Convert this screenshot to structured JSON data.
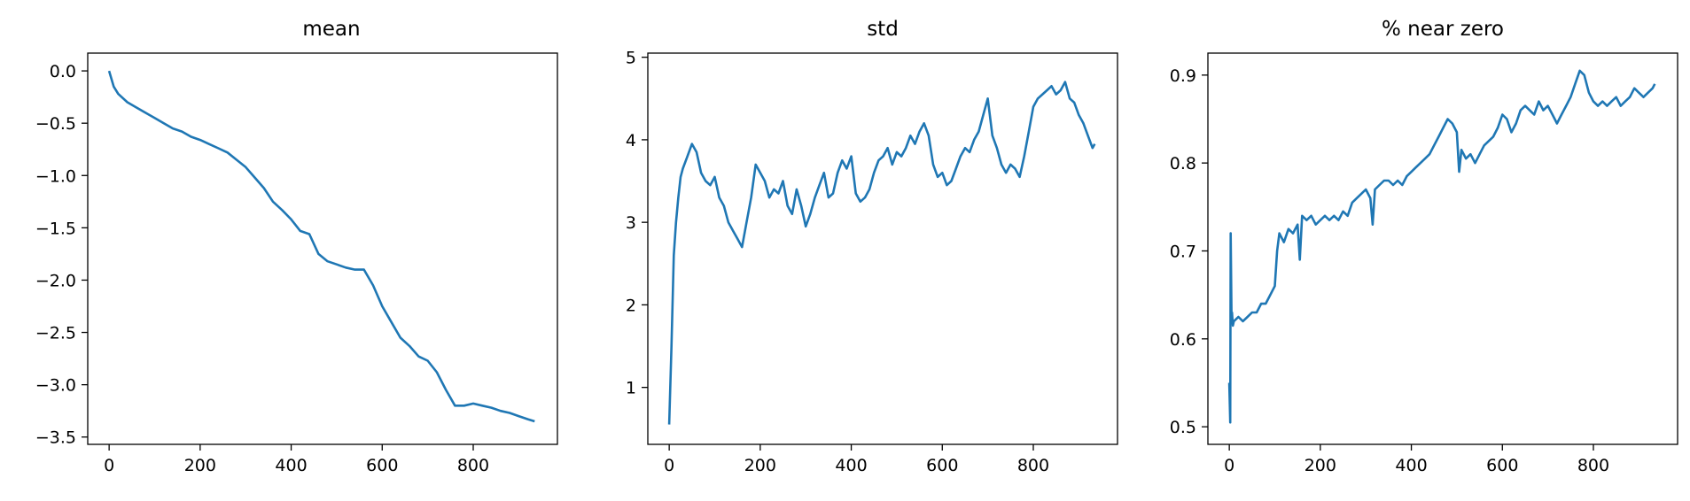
{
  "chart_data": [
    {
      "type": "line",
      "title": "mean",
      "xlabel": "",
      "ylabel": "",
      "xlim": [
        -47,
        985
      ],
      "ylim": [
        -3.57,
        0.17
      ],
      "xticks": [
        0,
        200,
        400,
        600,
        800
      ],
      "yticks": [
        0.0,
        -0.5,
        -1.0,
        -1.5,
        -2.0,
        -2.5,
        -3.0,
        -3.5
      ],
      "ytick_labels": [
        "0.0",
        "−0.5",
        "−1.0",
        "−1.5",
        "−2.0",
        "−2.5",
        "−3.0",
        "−3.5"
      ],
      "grid": false,
      "color": "#1f77b4",
      "series": [
        {
          "x": [
            0,
            10,
            20,
            40,
            60,
            80,
            100,
            120,
            140,
            160,
            180,
            200,
            220,
            240,
            260,
            280,
            300,
            320,
            340,
            360,
            380,
            400,
            420,
            440,
            460,
            480,
            500,
            520,
            540,
            560,
            580,
            600,
            620,
            640,
            660,
            680,
            700,
            720,
            740,
            760,
            780,
            800,
            820,
            840,
            860,
            880,
            900,
            920,
            935
          ],
          "y": [
            0.0,
            -0.15,
            -0.22,
            -0.3,
            -0.35,
            -0.4,
            -0.45,
            -0.5,
            -0.55,
            -0.58,
            -0.63,
            -0.66,
            -0.7,
            -0.74,
            -0.78,
            -0.85,
            -0.92,
            -1.02,
            -1.12,
            -1.25,
            -1.33,
            -1.42,
            -1.53,
            -1.56,
            -1.75,
            -1.82,
            -1.85,
            -1.88,
            -1.9,
            -1.9,
            -2.05,
            -2.25,
            -2.4,
            -2.55,
            -2.63,
            -2.73,
            -2.77,
            -2.88,
            -3.05,
            -3.2,
            -3.2,
            -3.18,
            -3.2,
            -3.22,
            -3.25,
            -3.27,
            -3.3,
            -3.33,
            -3.35
          ]
        }
      ]
    },
    {
      "type": "line",
      "title": "std",
      "xlabel": "",
      "ylabel": "",
      "xlim": [
        -47,
        985
      ],
      "ylim": [
        0.31,
        5.05
      ],
      "xticks": [
        0,
        200,
        400,
        600,
        800
      ],
      "yticks": [
        1,
        2,
        3,
        4,
        5
      ],
      "ytick_labels": [
        "1",
        "2",
        "3",
        "4",
        "5"
      ],
      "grid": false,
      "color": "#1f77b4",
      "series": [
        {
          "x": [
            0,
            5,
            10,
            15,
            20,
            25,
            30,
            40,
            50,
            60,
            70,
            80,
            90,
            100,
            110,
            120,
            130,
            140,
            150,
            160,
            170,
            180,
            190,
            200,
            210,
            220,
            230,
            240,
            250,
            260,
            270,
            280,
            290,
            300,
            310,
            320,
            330,
            340,
            350,
            360,
            370,
            380,
            390,
            400,
            410,
            420,
            430,
            440,
            450,
            460,
            470,
            480,
            490,
            500,
            510,
            520,
            530,
            540,
            550,
            560,
            570,
            580,
            590,
            600,
            610,
            620,
            630,
            640,
            650,
            660,
            670,
            680,
            690,
            700,
            710,
            720,
            730,
            740,
            750,
            760,
            770,
            780,
            790,
            800,
            810,
            820,
            830,
            840,
            850,
            860,
            870,
            880,
            890,
            900,
            910,
            920,
            930,
            935
          ],
          "y": [
            0.55,
            1.5,
            2.6,
            3.0,
            3.3,
            3.55,
            3.65,
            3.8,
            3.95,
            3.85,
            3.6,
            3.5,
            3.45,
            3.55,
            3.3,
            3.2,
            3.0,
            2.9,
            2.8,
            2.7,
            3.0,
            3.3,
            3.7,
            3.6,
            3.5,
            3.3,
            3.4,
            3.35,
            3.5,
            3.2,
            3.1,
            3.4,
            3.2,
            2.95,
            3.1,
            3.3,
            3.45,
            3.6,
            3.3,
            3.35,
            3.6,
            3.75,
            3.65,
            3.8,
            3.35,
            3.25,
            3.3,
            3.4,
            3.6,
            3.75,
            3.8,
            3.9,
            3.7,
            3.85,
            3.8,
            3.9,
            4.05,
            3.95,
            4.1,
            4.2,
            4.05,
            3.7,
            3.55,
            3.6,
            3.45,
            3.5,
            3.65,
            3.8,
            3.9,
            3.85,
            4.0,
            4.1,
            4.3,
            4.5,
            4.05,
            3.9,
            3.7,
            3.6,
            3.7,
            3.65,
            3.55,
            3.8,
            4.1,
            4.4,
            4.5,
            4.55,
            4.6,
            4.65,
            4.55,
            4.6,
            4.7,
            4.5,
            4.45,
            4.3,
            4.2,
            4.05,
            3.9,
            3.95
          ]
        }
      ]
    },
    {
      "type": "line",
      "title": "% near zero",
      "xlabel": "",
      "ylabel": "",
      "xlim": [
        -47,
        985
      ],
      "ylim": [
        0.48,
        0.925
      ],
      "xticks": [
        0,
        200,
        400,
        600,
        800
      ],
      "yticks": [
        0.5,
        0.6,
        0.7,
        0.8,
        0.9
      ],
      "ytick_labels": [
        "0.5",
        "0.6",
        "0.7",
        "0.8",
        "0.9"
      ],
      "grid": false,
      "color": "#1f77b4",
      "series": [
        {
          "x": [
            0,
            2,
            3,
            5,
            6,
            8,
            10,
            20,
            30,
            40,
            50,
            60,
            70,
            80,
            90,
            100,
            105,
            110,
            120,
            130,
            140,
            150,
            155,
            160,
            170,
            180,
            190,
            200,
            210,
            220,
            230,
            240,
            250,
            260,
            270,
            280,
            290,
            300,
            310,
            315,
            320,
            330,
            340,
            350,
            360,
            370,
            380,
            390,
            400,
            410,
            420,
            430,
            440,
            450,
            460,
            470,
            480,
            490,
            500,
            505,
            510,
            520,
            530,
            540,
            550,
            560,
            570,
            580,
            590,
            600,
            610,
            620,
            630,
            640,
            650,
            660,
            670,
            680,
            690,
            700,
            710,
            720,
            730,
            740,
            750,
            760,
            770,
            780,
            790,
            800,
            810,
            820,
            830,
            840,
            850,
            860,
            870,
            880,
            890,
            900,
            910,
            920,
            930,
            935
          ],
          "y": [
            0.55,
            0.505,
            0.72,
            0.62,
            0.63,
            0.615,
            0.62,
            0.625,
            0.62,
            0.625,
            0.63,
            0.63,
            0.64,
            0.64,
            0.65,
            0.66,
            0.7,
            0.72,
            0.71,
            0.725,
            0.72,
            0.73,
            0.69,
            0.74,
            0.735,
            0.74,
            0.73,
            0.735,
            0.74,
            0.735,
            0.74,
            0.735,
            0.745,
            0.74,
            0.755,
            0.76,
            0.765,
            0.77,
            0.76,
            0.73,
            0.77,
            0.775,
            0.78,
            0.78,
            0.775,
            0.78,
            0.775,
            0.785,
            0.79,
            0.795,
            0.8,
            0.805,
            0.81,
            0.82,
            0.83,
            0.84,
            0.85,
            0.845,
            0.835,
            0.79,
            0.815,
            0.805,
            0.81,
            0.8,
            0.81,
            0.82,
            0.825,
            0.83,
            0.84,
            0.855,
            0.85,
            0.835,
            0.845,
            0.86,
            0.865,
            0.86,
            0.855,
            0.87,
            0.86,
            0.865,
            0.855,
            0.845,
            0.855,
            0.865,
            0.875,
            0.89,
            0.905,
            0.9,
            0.88,
            0.87,
            0.865,
            0.87,
            0.865,
            0.87,
            0.875,
            0.865,
            0.87,
            0.875,
            0.885,
            0.88,
            0.875,
            0.88,
            0.885,
            0.89
          ]
        }
      ]
    }
  ]
}
